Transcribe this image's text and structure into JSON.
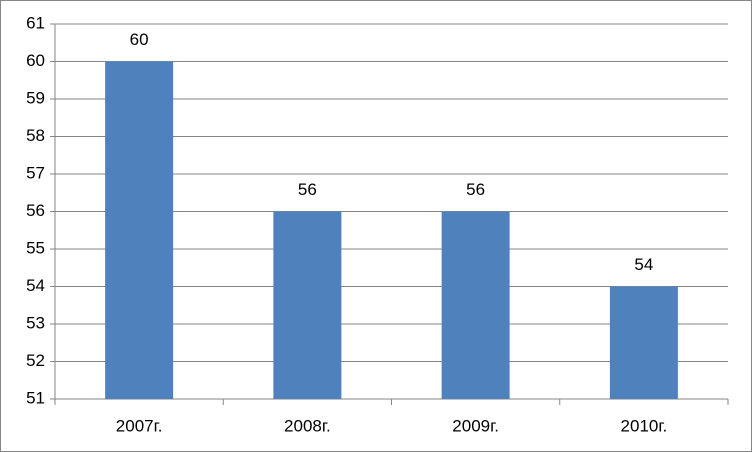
{
  "chart_data": {
    "type": "bar",
    "categories": [
      "2007г.",
      "2008г.",
      "2009г.",
      "2010г."
    ],
    "values": [
      60,
      56,
      56,
      54
    ],
    "color": "#4f81bd",
    "ylim": [
      51,
      61
    ],
    "yticks": [
      51,
      52,
      53,
      54,
      55,
      56,
      57,
      58,
      59,
      60,
      61
    ],
    "grid": true
  }
}
